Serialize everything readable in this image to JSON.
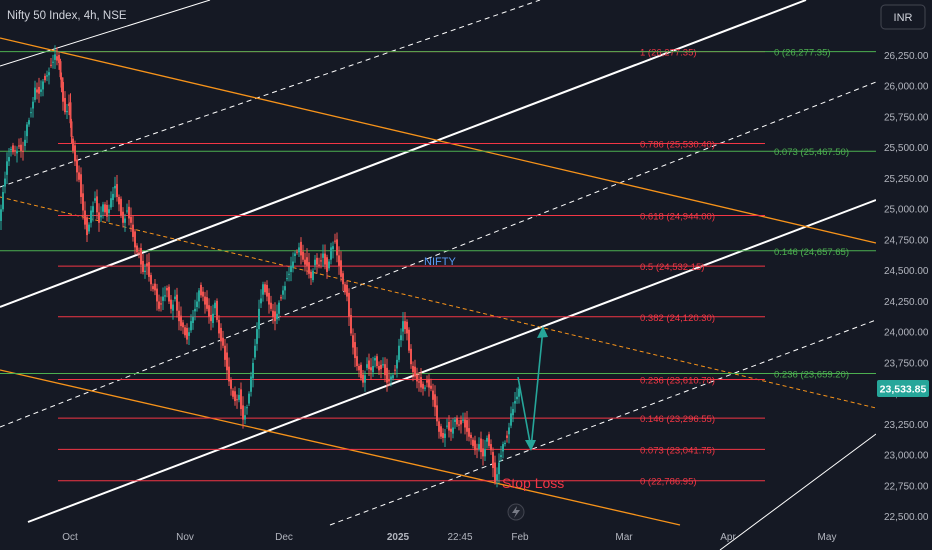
{
  "header": {
    "symbol_title": "Nifty 50 Index, 4h, NSE"
  },
  "currency_badge": "INR",
  "colors": {
    "background": "#151924",
    "axis_text": "#b2b5be",
    "up_candle": "#26a69a",
    "down_candle": "#ef5350",
    "fib_red": "#f23645",
    "fib_green": "#4caf50",
    "orange_line": "#f7931a",
    "white_line": "#ffffff",
    "arrow": "#26a69a",
    "last_price_bg": "#26a69a"
  },
  "chart_data": {
    "type": "candlestick",
    "title": "Nifty 50 Index, 4h, NSE",
    "ylim": [
      22400,
      26600
    ],
    "y_ticks": [
      "26,250.00",
      "26,000.00",
      "25,750.00",
      "25,500.00",
      "25,250.00",
      "25,000.00",
      "24,750.00",
      "24,500.00",
      "24,250.00",
      "24,000.00",
      "23,750.00",
      "23,500.00",
      "23,250.00",
      "23,000.00",
      "22,750.00",
      "22,500.00"
    ],
    "x_ticks": [
      "Oct",
      "Nov",
      "Dec",
      "2025",
      "22:45",
      "Feb",
      "Mar",
      "Apr",
      "May"
    ],
    "last_price": "23,533.85",
    "fib_left": {
      "color": "red",
      "levels": [
        {
          "label": "1 (26,277.35)",
          "value": 26277.35
        },
        {
          "label": "0.786 (25,530.40)",
          "value": 25530.4
        },
        {
          "label": "0.618 (24,944.00)",
          "value": 24944.0
        },
        {
          "label": "0.5 (24,532.15)",
          "value": 24532.15
        },
        {
          "label": "0.382 (24,120.30)",
          "value": 24120.3
        },
        {
          "label": "0.236 (23,610.70)",
          "value": 23610.7
        },
        {
          "label": "0.146 (23,296.55)",
          "value": 23296.55
        },
        {
          "label": "0.073 (23,041.75)",
          "value": 23041.75
        },
        {
          "label": "0 (22,786.95)",
          "value": 22786.95
        }
      ]
    },
    "fib_right": {
      "color": "green",
      "levels": [
        {
          "label": "0 (26,277.35)",
          "value": 26277.35
        },
        {
          "label": "0.073 (25,467.50)",
          "value": 25467.5
        },
        {
          "label": "0.146 (24,657.65)",
          "value": 24657.65
        },
        {
          "label": "0.236 (23,659.20)",
          "value": 23659.2
        }
      ]
    },
    "annotations": [
      "NIFTY",
      "Stop Loss"
    ],
    "price_path": [
      [
        0,
        24900
      ],
      [
        4,
        25150
      ],
      [
        8,
        25400
      ],
      [
        12,
        25500
      ],
      [
        16,
        25480
      ],
      [
        20,
        25520
      ],
      [
        24,
        25480
      ],
      [
        28,
        25700
      ],
      [
        32,
        25800
      ],
      [
        36,
        26000
      ],
      [
        40,
        25950
      ],
      [
        44,
        26050
      ],
      [
        48,
        26100
      ],
      [
        52,
        26180
      ],
      [
        56,
        26270
      ],
      [
        60,
        26200
      ],
      [
        62,
        26000
      ],
      [
        66,
        25800
      ],
      [
        70,
        25850
      ],
      [
        72,
        25600
      ],
      [
        76,
        25400
      ],
      [
        80,
        25250
      ],
      [
        84,
        25000
      ],
      [
        88,
        24800
      ],
      [
        92,
        25000
      ],
      [
        96,
        25100
      ],
      [
        100,
        24900
      ],
      [
        104,
        25050
      ],
      [
        108,
        24950
      ],
      [
        112,
        25100
      ],
      [
        116,
        25200
      ],
      [
        120,
        25050
      ],
      [
        124,
        24900
      ],
      [
        128,
        25000
      ],
      [
        132,
        24900
      ],
      [
        136,
        24700
      ],
      [
        140,
        24650
      ],
      [
        144,
        24500
      ],
      [
        148,
        24550
      ],
      [
        152,
        24400
      ],
      [
        156,
        24350
      ],
      [
        160,
        24200
      ],
      [
        164,
        24300
      ],
      [
        168,
        24350
      ],
      [
        172,
        24200
      ],
      [
        176,
        24300
      ],
      [
        180,
        24100
      ],
      [
        184,
        24050
      ],
      [
        188,
        23950
      ],
      [
        192,
        24100
      ],
      [
        196,
        24200
      ],
      [
        200,
        24350
      ],
      [
        204,
        24300
      ],
      [
        208,
        24200
      ],
      [
        212,
        24100
      ],
      [
        216,
        24250
      ],
      [
        220,
        24000
      ],
      [
        224,
        23900
      ],
      [
        228,
        23700
      ],
      [
        232,
        23550
      ],
      [
        236,
        23450
      ],
      [
        240,
        23500
      ],
      [
        244,
        23300
      ],
      [
        248,
        23400
      ],
      [
        252,
        23650
      ],
      [
        256,
        23900
      ],
      [
        260,
        24200
      ],
      [
        264,
        24400
      ],
      [
        268,
        24300
      ],
      [
        272,
        24200
      ],
      [
        276,
        24100
      ],
      [
        280,
        24250
      ],
      [
        284,
        24350
      ],
      [
        288,
        24450
      ],
      [
        292,
        24550
      ],
      [
        296,
        24650
      ],
      [
        300,
        24700
      ],
      [
        304,
        24600
      ],
      [
        308,
        24550
      ],
      [
        312,
        24450
      ],
      [
        316,
        24600
      ],
      [
        320,
        24550
      ],
      [
        324,
        24650
      ],
      [
        328,
        24500
      ],
      [
        332,
        24700
      ],
      [
        336,
        24750
      ],
      [
        340,
        24550
      ],
      [
        344,
        24400
      ],
      [
        348,
        24300
      ],
      [
        352,
        24000
      ],
      [
        356,
        23800
      ],
      [
        360,
        23700
      ],
      [
        364,
        23600
      ],
      [
        368,
        23750
      ],
      [
        372,
        23700
      ],
      [
        376,
        23800
      ],
      [
        380,
        23700
      ],
      [
        384,
        23750
      ],
      [
        388,
        23600
      ],
      [
        392,
        23650
      ],
      [
        396,
        23700
      ],
      [
        400,
        23900
      ],
      [
        404,
        24100
      ],
      [
        408,
        24000
      ],
      [
        412,
        23750
      ],
      [
        416,
        23650
      ],
      [
        420,
        23600
      ],
      [
        424,
        23550
      ],
      [
        428,
        23600
      ],
      [
        432,
        23550
      ],
      [
        436,
        23400
      ],
      [
        440,
        23200
      ],
      [
        444,
        23150
      ],
      [
        448,
        23250
      ],
      [
        452,
        23200
      ],
      [
        456,
        23300
      ],
      [
        460,
        23250
      ],
      [
        464,
        23300
      ],
      [
        468,
        23200
      ],
      [
        472,
        23150
      ],
      [
        476,
        23050
      ],
      [
        480,
        23100
      ],
      [
        484,
        23000
      ],
      [
        488,
        23150
      ],
      [
        492,
        23050
      ],
      [
        496,
        22790
      ],
      [
        500,
        22950
      ],
      [
        504,
        23100
      ],
      [
        508,
        23150
      ],
      [
        512,
        23350
      ],
      [
        516,
        23450
      ],
      [
        520,
        23550
      ]
    ]
  }
}
